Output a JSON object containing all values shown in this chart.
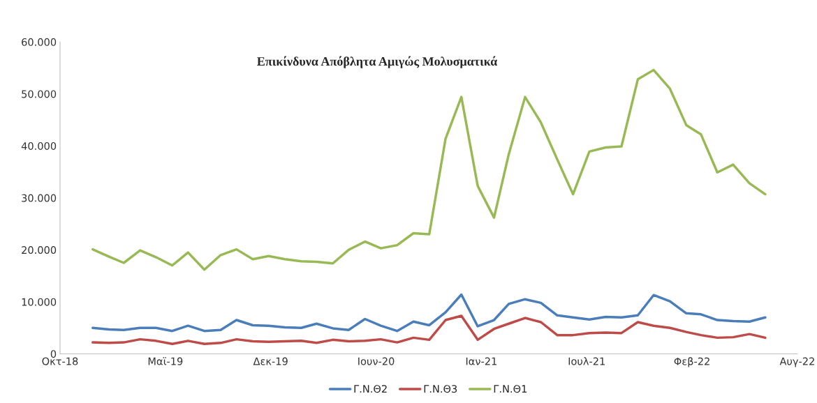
{
  "chart_data": {
    "type": "line",
    "title": "Επικίνδυνα Απόβλητα Αμιγώς Μολυσματικά",
    "x": [
      "2019-01",
      "2019-02",
      "2019-03",
      "2019-04",
      "2019-05",
      "2019-06",
      "2019-07",
      "2019-08",
      "2019-09",
      "2019-10",
      "2019-11",
      "2019-12",
      "2020-01",
      "2020-02",
      "2020-03",
      "2020-04",
      "2020-05",
      "2020-06",
      "2020-07",
      "2020-08",
      "2020-09",
      "2020-10",
      "2020-11",
      "2020-12",
      "2021-01",
      "2021-02",
      "2021-03",
      "2021-04",
      "2021-05",
      "2021-06",
      "2021-07",
      "2021-08",
      "2021-09",
      "2021-10",
      "2021-11",
      "2021-12",
      "2022-01",
      "2022-02",
      "2022-03",
      "2022-04",
      "2022-05",
      "2022-06",
      "2022-07"
    ],
    "series": [
      {
        "name": "Γ.Ν.Θ2",
        "color": "#4a7ebb",
        "values": [
          5000,
          4700,
          4600,
          5000,
          5000,
          4400,
          5400,
          4400,
          4600,
          6500,
          5500,
          5400,
          5100,
          5000,
          5800,
          4900,
          4600,
          6700,
          5400,
          4400,
          6200,
          5500,
          8000,
          11400,
          5300,
          6500,
          9600,
          10500,
          9800,
          7400,
          7000,
          6600,
          7100,
          7000,
          7400,
          11300,
          10100,
          7800,
          7600,
          6500,
          6300,
          6200,
          7000
        ]
      },
      {
        "name": "Γ.Ν.Θ3",
        "color": "#be4b48",
        "values": [
          2200,
          2100,
          2200,
          2800,
          2500,
          1900,
          2500,
          1900,
          2100,
          2800,
          2400,
          2300,
          2400,
          2500,
          2100,
          2700,
          2400,
          2500,
          2800,
          2200,
          3100,
          2700,
          6500,
          7300,
          2700,
          4800,
          5800,
          6900,
          6100,
          3600,
          3600,
          4000,
          4100,
          4000,
          6100,
          5400,
          5000,
          4200,
          3600,
          3100,
          3200,
          3800,
          3100
        ]
      },
      {
        "name": "Γ.Ν.Θ1",
        "color": "#98b954",
        "values": [
          20100,
          18700,
          17500,
          19900,
          18600,
          17000,
          19500,
          16200,
          19000,
          20100,
          18200,
          18800,
          18200,
          17800,
          17700,
          17400,
          20000,
          21600,
          20300,
          20900,
          23200,
          23000,
          41400,
          49400,
          32300,
          26200,
          38400,
          49400,
          44500,
          37400,
          30700,
          38900,
          39700,
          39900,
          52800,
          54600,
          51000,
          44000,
          42200,
          34900,
          36400,
          32800,
          30700
        ]
      }
    ],
    "xlim": [
      "2018-10-31",
      "2022-08-31"
    ],
    "xticks": [
      {
        "value": "2018-10-31",
        "label": "Οκτ-18"
      },
      {
        "value": "2019-05-19",
        "label": "Μαϊ-19"
      },
      {
        "value": "2019-12-05",
        "label": "Δεκ-19"
      },
      {
        "value": "2020-06-22",
        "label": "Ιουν-20"
      },
      {
        "value": "2021-01-08",
        "label": "Ιαν-21"
      },
      {
        "value": "2021-07-27",
        "label": "Ιουλ-21"
      },
      {
        "value": "2022-02-12",
        "label": "Φεβ-22"
      },
      {
        "value": "2022-08-31",
        "label": "Αυγ-22"
      }
    ],
    "ylim": [
      0,
      60000
    ],
    "yticks": [
      0,
      {
        "value": 10000,
        "label": "10.000"
      },
      {
        "value": 20000,
        "label": "20.000"
      },
      {
        "value": 30000,
        "label": "30.000"
      },
      {
        "value": 40000,
        "label": "40.000"
      },
      {
        "value": 50000,
        "label": "50.000"
      },
      {
        "value": 60000,
        "label": "60.000"
      }
    ],
    "legend": "bottom",
    "grid": false,
    "marker": "none",
    "line_style": "solid"
  }
}
